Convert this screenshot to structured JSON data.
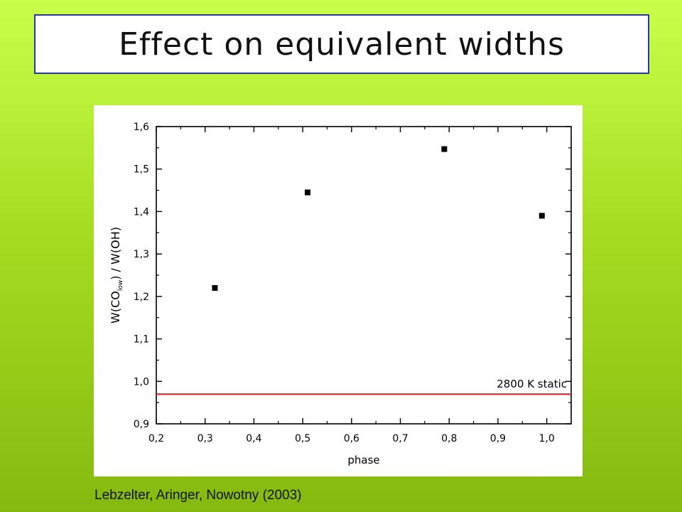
{
  "slide": {
    "title": "Effect on equivalent widths",
    "credit": "Lebzelter, Aringer, Nowotny (2003)"
  },
  "chart_data": {
    "type": "scatter",
    "xlabel": "phase",
    "ylabel_main": "W(CO",
    "ylabel_sub": "low",
    "ylabel_tail": ") / W(OH)",
    "xlim": [
      0.2,
      1.05
    ],
    "ylim": [
      0.9,
      1.6
    ],
    "xticks": [
      0.2,
      0.3,
      0.4,
      0.5,
      0.6,
      0.7,
      0.8,
      0.9,
      1.0
    ],
    "xtick_labels": [
      "0,2",
      "0,3",
      "0,4",
      "0,5",
      "0,6",
      "0,7",
      "0,8",
      "0,9",
      "1,0"
    ],
    "yticks": [
      0.9,
      1.0,
      1.1,
      1.2,
      1.3,
      1.4,
      1.5,
      1.6
    ],
    "ytick_labels": [
      "0,9",
      "1,0",
      "1,1",
      "1,2",
      "1,3",
      "1,4",
      "1,5",
      "1,6"
    ],
    "points": [
      {
        "x": 0.32,
        "y": 1.22
      },
      {
        "x": 0.51,
        "y": 1.445
      },
      {
        "x": 0.79,
        "y": 1.547
      },
      {
        "x": 0.99,
        "y": 1.39
      }
    ],
    "reference_line": {
      "y": 0.97,
      "label": "2800 K static",
      "color": "#e02020"
    },
    "marker_color": "#000000",
    "grid": false
  }
}
